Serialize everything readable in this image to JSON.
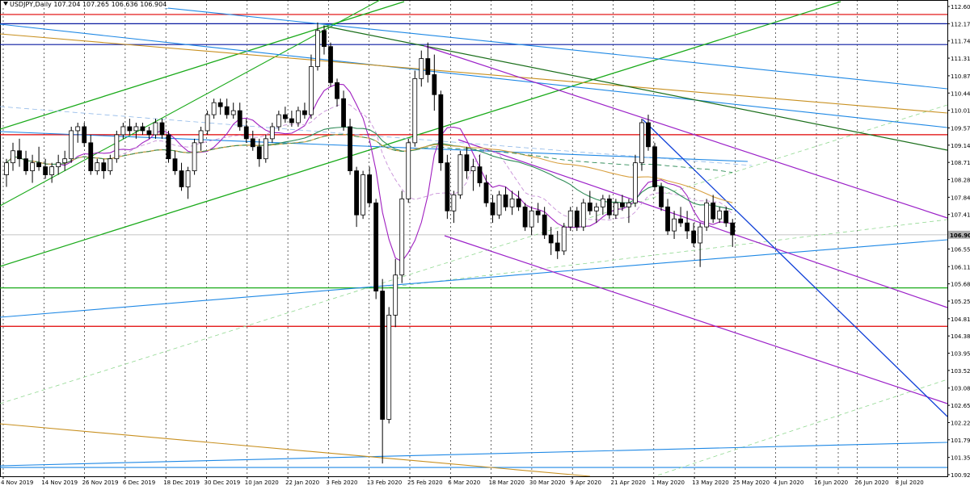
{
  "header": {
    "symbol": "USDJPY,Daily",
    "ohlc": "107.204 107.265 106.636 106.904"
  },
  "chart_data": {
    "type": "candlestick",
    "symbol": "USDJPY",
    "timeframe": "Daily",
    "last_price": 106.904,
    "ylim": [
      100.92,
      112.6
    ],
    "y_ticks": [
      "112.600",
      "112.170",
      "111.740",
      "111.310",
      "110.870",
      "110.440",
      "110.010",
      "109.570",
      "109.140",
      "108.710",
      "108.280",
      "107.840",
      "107.410",
      "106.550",
      "106.110",
      "105.680",
      "105.250",
      "104.810",
      "104.380",
      "103.950",
      "103.520",
      "103.080",
      "102.650",
      "102.220",
      "101.790",
      "101.350",
      "100.920"
    ],
    "x_ticks": [
      "4 Nov 2019",
      "14 Nov 2019",
      "26 Nov 2019",
      "6 Dec 2019",
      "18 Dec 2019",
      "30 Dec 2019",
      "10 Jan 2020",
      "22 Jan 2020",
      "3 Feb 2020",
      "13 Feb 2020",
      "25 Feb 2020",
      "6 Mar 2020",
      "18 Mar 2020",
      "30 Mar 2020",
      "9 Apr 2020",
      "21 Apr 2020",
      "1 May 2020",
      "13 May 2020",
      "25 May 2020",
      "4 Jun 2020",
      "16 Jun 2020",
      "26 Jun 2020",
      "8 Jul 2020"
    ],
    "last_price_label": "106.904",
    "candles": [
      [
        108.4,
        108.8,
        108.1,
        108.7
      ],
      [
        108.7,
        109.2,
        108.5,
        109.0
      ],
      [
        109.0,
        109.3,
        108.6,
        108.8
      ],
      [
        108.8,
        109.0,
        108.4,
        108.5
      ],
      [
        108.5,
        108.9,
        108.2,
        108.7
      ],
      [
        108.7,
        109.1,
        108.5,
        108.6
      ],
      [
        108.6,
        108.8,
        108.3,
        108.4
      ],
      [
        108.4,
        108.7,
        108.2,
        108.6
      ],
      [
        108.6,
        108.9,
        108.4,
        108.7
      ],
      [
        108.7,
        109.0,
        108.5,
        108.8
      ],
      [
        108.8,
        109.6,
        108.7,
        109.5
      ],
      [
        109.5,
        109.7,
        109.2,
        109.6
      ],
      [
        109.6,
        109.7,
        109.1,
        109.2
      ],
      [
        109.2,
        109.4,
        108.4,
        108.5
      ],
      [
        108.5,
        108.8,
        108.4,
        108.7
      ],
      [
        108.7,
        108.8,
        108.3,
        108.5
      ],
      [
        108.5,
        108.9,
        108.4,
        108.8
      ],
      [
        108.8,
        109.5,
        108.7,
        109.4
      ],
      [
        109.4,
        109.7,
        109.3,
        109.6
      ],
      [
        109.6,
        109.8,
        109.4,
        109.5
      ],
      [
        109.5,
        109.7,
        109.3,
        109.6
      ],
      [
        109.6,
        109.7,
        109.4,
        109.5
      ],
      [
        109.5,
        109.6,
        109.3,
        109.4
      ],
      [
        109.4,
        109.8,
        109.3,
        109.7
      ],
      [
        109.7,
        109.8,
        109.3,
        109.4
      ],
      [
        109.4,
        109.5,
        108.7,
        108.8
      ],
      [
        108.8,
        109.0,
        108.4,
        108.5
      ],
      [
        108.5,
        108.7,
        108.0,
        108.1
      ],
      [
        108.1,
        108.6,
        107.8,
        108.5
      ],
      [
        108.5,
        109.3,
        108.4,
        109.2
      ],
      [
        109.2,
        109.6,
        109.0,
        109.5
      ],
      [
        109.5,
        110.0,
        109.4,
        109.9
      ],
      [
        109.9,
        110.3,
        109.8,
        110.2
      ],
      [
        110.2,
        110.3,
        109.9,
        110.1
      ],
      [
        110.1,
        110.3,
        109.8,
        109.9
      ],
      [
        109.9,
        110.2,
        109.8,
        110.0
      ],
      [
        110.0,
        110.2,
        109.5,
        109.6
      ],
      [
        109.6,
        109.8,
        109.2,
        109.3
      ],
      [
        109.3,
        109.5,
        109.0,
        109.1
      ],
      [
        109.1,
        109.3,
        108.6,
        108.8
      ],
      [
        108.8,
        109.4,
        108.7,
        109.3
      ],
      [
        109.3,
        109.7,
        109.2,
        109.6
      ],
      [
        109.6,
        110.0,
        109.5,
        109.9
      ],
      [
        109.9,
        110.1,
        109.7,
        109.8
      ],
      [
        109.8,
        110.0,
        109.6,
        109.7
      ],
      [
        109.7,
        110.1,
        109.6,
        110.0
      ],
      [
        110.0,
        110.2,
        109.8,
        109.9
      ],
      [
        109.9,
        111.4,
        109.8,
        111.1
      ],
      [
        111.1,
        112.2,
        111.0,
        112.0
      ],
      [
        112.0,
        112.1,
        111.4,
        111.6
      ],
      [
        111.6,
        111.7,
        110.6,
        110.7
      ],
      [
        110.7,
        110.8,
        110.1,
        110.3
      ],
      [
        110.3,
        110.5,
        109.5,
        109.6
      ],
      [
        109.6,
        109.8,
        108.4,
        108.5
      ],
      [
        108.5,
        108.6,
        107.1,
        107.4
      ],
      [
        107.4,
        108.5,
        107.3,
        108.4
      ],
      [
        108.4,
        108.6,
        107.6,
        107.7
      ],
      [
        107.7,
        107.8,
        105.3,
        105.5
      ],
      [
        105.5,
        105.8,
        101.2,
        102.3
      ],
      [
        102.3,
        105.1,
        102.2,
        104.9
      ],
      [
        104.9,
        106.3,
        104.6,
        105.9
      ],
      [
        105.9,
        108.0,
        105.7,
        107.8
      ],
      [
        107.8,
        109.3,
        107.7,
        109.2
      ],
      [
        109.2,
        111.0,
        109.1,
        110.8
      ],
      [
        110.8,
        111.5,
        110.6,
        111.3
      ],
      [
        111.3,
        111.7,
        110.7,
        110.9
      ],
      [
        110.9,
        111.4,
        110.0,
        110.4
      ],
      [
        110.4,
        110.5,
        108.5,
        108.7
      ],
      [
        108.7,
        108.9,
        107.3,
        107.5
      ],
      [
        107.5,
        108.0,
        107.2,
        107.9
      ],
      [
        107.9,
        109.0,
        107.8,
        108.9
      ],
      [
        108.9,
        109.1,
        108.3,
        108.5
      ],
      [
        108.5,
        108.8,
        108.0,
        108.6
      ],
      [
        108.6,
        108.9,
        108.1,
        108.2
      ],
      [
        108.2,
        108.4,
        107.6,
        107.7
      ],
      [
        107.7,
        107.9,
        107.2,
        107.4
      ],
      [
        107.4,
        108.0,
        107.3,
        107.9
      ],
      [
        107.9,
        108.1,
        107.5,
        107.6
      ],
      [
        107.6,
        108.0,
        107.4,
        107.8
      ],
      [
        107.8,
        108.0,
        107.5,
        107.6
      ],
      [
        107.6,
        107.7,
        107.0,
        107.1
      ],
      [
        107.1,
        107.6,
        106.9,
        107.5
      ],
      [
        107.5,
        107.7,
        107.2,
        107.4
      ],
      [
        107.4,
        107.6,
        106.8,
        106.9
      ],
      [
        106.9,
        107.1,
        106.4,
        106.7
      ],
      [
        106.7,
        107.0,
        106.3,
        106.5
      ],
      [
        106.5,
        107.2,
        106.4,
        107.1
      ],
      [
        107.1,
        107.6,
        107.0,
        107.5
      ],
      [
        107.5,
        107.6,
        107.0,
        107.1
      ],
      [
        107.1,
        107.8,
        107.0,
        107.7
      ],
      [
        107.7,
        108.0,
        107.4,
        107.5
      ],
      [
        107.5,
        107.7,
        107.2,
        107.6
      ],
      [
        107.6,
        107.9,
        107.4,
        107.8
      ],
      [
        107.8,
        107.9,
        107.3,
        107.4
      ],
      [
        107.4,
        107.8,
        107.3,
        107.7
      ],
      [
        107.7,
        107.9,
        107.5,
        107.6
      ],
      [
        107.6,
        107.8,
        107.2,
        107.7
      ],
      [
        107.7,
        108.9,
        107.6,
        108.7
      ],
      [
        108.7,
        109.8,
        108.5,
        109.7
      ],
      [
        109.7,
        109.9,
        109.0,
        109.1
      ],
      [
        109.1,
        109.2,
        108.0,
        108.1
      ],
      [
        108.1,
        108.2,
        107.5,
        107.6
      ],
      [
        107.6,
        107.8,
        106.9,
        107.0
      ],
      [
        107.0,
        107.5,
        106.8,
        107.3
      ],
      [
        107.3,
        107.6,
        107.1,
        107.2
      ],
      [
        107.2,
        107.5,
        106.8,
        107.0
      ],
      [
        107.0,
        107.2,
        106.6,
        106.7
      ],
      [
        106.7,
        107.2,
        106.1,
        107.1
      ],
      [
        107.1,
        107.8,
        107.0,
        107.7
      ],
      [
        107.7,
        107.9,
        107.2,
        107.3
      ],
      [
        107.3,
        107.6,
        107.2,
        107.5
      ],
      [
        107.5,
        107.6,
        107.1,
        107.2
      ],
      [
        107.2,
        107.3,
        106.6,
        106.9
      ]
    ]
  }
}
